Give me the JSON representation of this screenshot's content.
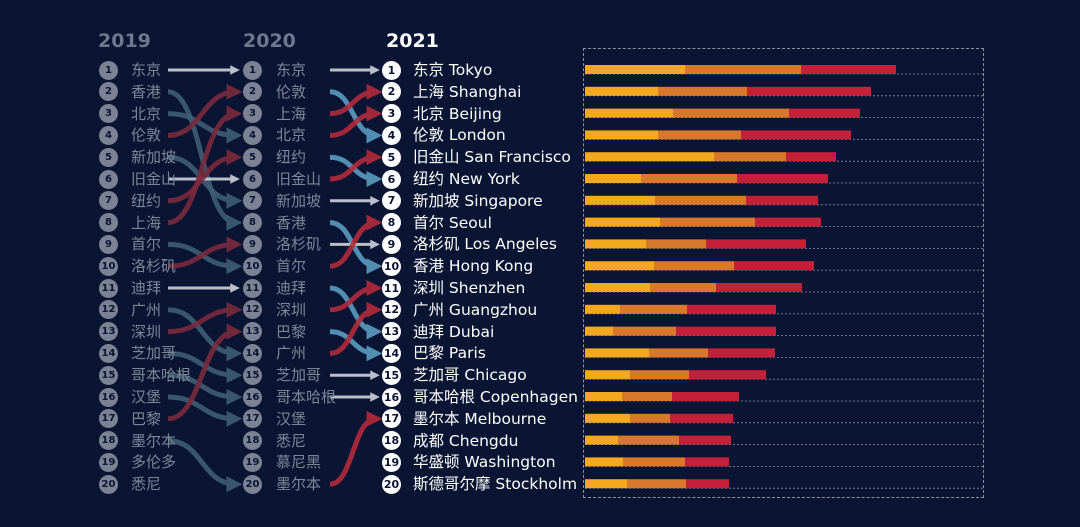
{
  "colors": {
    "background": "#0a1433",
    "arrow_plain": "#c5c9d3",
    "arrow_up": "#7a2a3e",
    "arrow_up_strong": "#b22a3a",
    "arrow_down": "#3e5e74",
    "arrow_down_strong": "#5a9cc0",
    "bar_segment_1": "#f4a81d",
    "bar_segment_2": "#d9782a",
    "bar_segment_3": "#c5203a"
  },
  "rankings": [
    {
      "year": "2019",
      "cities": [
        "东京",
        "香港",
        "北京",
        "伦敦",
        "新加坡",
        "旧金山",
        "纽约",
        "上海",
        "首尔",
        "洛杉矶",
        "迪拜",
        "广州",
        "深圳",
        "芝加哥",
        "哥本哈根",
        "汉堡",
        "巴黎",
        "墨尔本",
        "多伦多",
        "悉尼"
      ]
    },
    {
      "year": "2020",
      "cities": [
        "东京",
        "伦敦",
        "上海",
        "北京",
        "纽约",
        "旧金山",
        "新加坡",
        "香港",
        "洛杉矶",
        "首尔",
        "迪拜",
        "深圳",
        "巴黎",
        "广州",
        "芝加哥",
        "哥本哈根",
        "汉堡",
        "悉尼",
        "慕尼黑",
        "墨尔本"
      ]
    },
    {
      "year": "2021",
      "cities": [
        "东京 Tokyo",
        "上海 Shanghai",
        "北京 Beijing",
        "伦敦 London",
        "旧金山 San Francisco",
        "纽约 New York",
        "新加坡 Singapore",
        "首尔 Seoul",
        "洛杉矶 Los Angeles",
        "香港 Hong Kong",
        "深圳 Shenzhen",
        "广州 Guangzhou",
        "迪拜 Dubai",
        "巴黎 Paris",
        "芝加哥 Chicago",
        "哥本哈根 Copenhagen",
        "墨尔本 Melbourne",
        "成都 Chengdu",
        "华盛顿 Washington",
        "斯德哥尔摩 Stockholm"
      ]
    }
  ],
  "rank_numbers": [
    "1",
    "2",
    "3",
    "4",
    "5",
    "6",
    "7",
    "8",
    "9",
    "10",
    "11",
    "12",
    "13",
    "14",
    "15",
    "16",
    "17",
    "18",
    "19",
    "20"
  ],
  "transitions": [
    {
      "from": 1,
      "to": 1,
      "trend": "same"
    },
    {
      "from": 2,
      "to": 8,
      "trend": "down"
    },
    {
      "from": 3,
      "to": 4,
      "trend": "down"
    },
    {
      "from": 4,
      "to": 2,
      "trend": "up"
    },
    {
      "from": 5,
      "to": 7,
      "trend": "down"
    },
    {
      "from": 6,
      "to": 6,
      "trend": "same"
    },
    {
      "from": 7,
      "to": 5,
      "trend": "up"
    },
    {
      "from": 8,
      "to": 3,
      "trend": "up"
    },
    {
      "from": 9,
      "to": 10,
      "trend": "down"
    },
    {
      "from": 10,
      "to": 9,
      "trend": "up"
    },
    {
      "from": 11,
      "to": 11,
      "trend": "same"
    },
    {
      "from": 12,
      "to": 14,
      "trend": "down"
    },
    {
      "from": 13,
      "to": 12,
      "trend": "up"
    },
    {
      "from": 14,
      "to": 15,
      "trend": "down"
    },
    {
      "from": 15,
      "to": 16,
      "trend": "down"
    },
    {
      "from": 16,
      "to": 17,
      "trend": "down"
    },
    {
      "from": 17,
      "to": 13,
      "trend": "up"
    },
    {
      "from": 18,
      "to": 20,
      "trend": "down"
    },
    {
      "from": 1,
      "to": 1,
      "trend": "same",
      "step": 2
    },
    {
      "from": 2,
      "to": 4,
      "trend": "down",
      "step": 2
    },
    {
      "from": 3,
      "to": 2,
      "trend": "up",
      "step": 2
    },
    {
      "from": 4,
      "to": 3,
      "trend": "up",
      "step": 2
    },
    {
      "from": 5,
      "to": 6,
      "trend": "down",
      "step": 2
    },
    {
      "from": 6,
      "to": 5,
      "trend": "up",
      "step": 2
    },
    {
      "from": 7,
      "to": 7,
      "trend": "same",
      "step": 2
    },
    {
      "from": 8,
      "to": 10,
      "trend": "down",
      "step": 2
    },
    {
      "from": 9,
      "to": 9,
      "trend": "same",
      "step": 2
    },
    {
      "from": 10,
      "to": 8,
      "trend": "up",
      "step": 2
    },
    {
      "from": 11,
      "to": 13,
      "trend": "down",
      "step": 2
    },
    {
      "from": 12,
      "to": 11,
      "trend": "up",
      "step": 2
    },
    {
      "from": 13,
      "to": 14,
      "trend": "down",
      "step": 2
    },
    {
      "from": 14,
      "to": 12,
      "trend": "up",
      "step": 2
    },
    {
      "from": 15,
      "to": 15,
      "trend": "same",
      "step": 2
    },
    {
      "from": 16,
      "to": 16,
      "trend": "same",
      "step": 2
    },
    {
      "from": 20,
      "to": 17,
      "trend": "up",
      "step": 2
    }
  ],
  "chart_data": {
    "type": "bar",
    "orientation": "horizontal",
    "stacked": true,
    "categories": [
      "东京 Tokyo",
      "上海 Shanghai",
      "北京 Beijing",
      "伦敦 London",
      "旧金山 San Francisco",
      "纽约 New York",
      "新加坡 Singapore",
      "首尔 Seoul",
      "洛杉矶 Los Angeles",
      "香港 Hong Kong",
      "深圳 Shenzhen",
      "广州 Guangzhou",
      "迪拜 Dubai",
      "巴黎 Paris",
      "芝加哥 Chicago",
      "哥本哈根 Copenhagen",
      "墨尔本 Melbourne",
      "成都 Chengdu",
      "华盛顿 Washington",
      "斯德哥尔摩 Stockholm"
    ],
    "series": [
      {
        "values": [
          100,
          73,
          88,
          73,
          129,
          56,
          70,
          75,
          61,
          69,
          65,
          35,
          28,
          64,
          45,
          37,
          45,
          33,
          38,
          42
        ]
      },
      {
        "values": [
          116,
          89,
          116,
          83,
          72,
          96,
          91,
          95,
          60,
          80,
          66,
          67,
          63,
          59,
          59,
          50,
          40,
          61,
          62,
          59
        ]
      },
      {
        "values": [
          95,
          124,
          71,
          110,
          50,
          91,
          72,
          66,
          100,
          80,
          86,
          89,
          100,
          67,
          77,
          67,
          63,
          52,
          44,
          43
        ]
      }
    ],
    "xlim": [
      0,
      400
    ],
    "grid": true,
    "legend": "none"
  }
}
